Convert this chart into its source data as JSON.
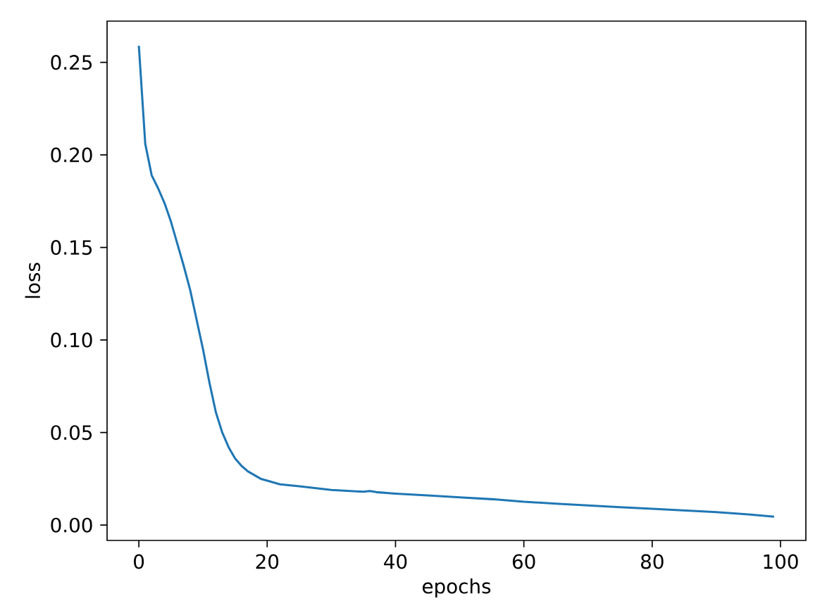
{
  "chart_data": {
    "type": "line",
    "xlabel": "epochs",
    "ylabel": "loss",
    "color": "#1f77b4",
    "x": [
      0,
      1,
      2,
      3,
      4,
      5,
      6,
      7,
      8,
      9,
      10,
      11,
      12,
      13,
      14,
      15,
      16,
      17,
      18,
      19,
      20,
      22,
      25,
      30,
      35,
      36,
      37,
      40,
      45,
      50,
      55,
      60,
      65,
      70,
      75,
      80,
      85,
      90,
      95,
      99
    ],
    "values": [
      0.259,
      0.206,
      0.189,
      0.182,
      0.174,
      0.164,
      0.152,
      0.14,
      0.127,
      0.111,
      0.095,
      0.077,
      0.061,
      0.05,
      0.042,
      0.036,
      0.032,
      0.029,
      0.027,
      0.025,
      0.024,
      0.022,
      0.021,
      0.019,
      0.018,
      0.0184,
      0.0178,
      0.017,
      0.016,
      0.015,
      0.014,
      0.0126,
      0.0116,
      0.0106,
      0.0097,
      0.0088,
      0.0079,
      0.007,
      0.0058,
      0.0045
    ],
    "xlim": [
      -4.95,
      103.95
    ],
    "ylim": [
      -0.0083,
      0.2723
    ],
    "xticks": [
      0,
      20,
      40,
      60,
      80,
      100
    ],
    "yticks": [
      {
        "value": 0,
        "label": "0.00"
      },
      {
        "value": 0.05,
        "label": "0.05"
      },
      {
        "value": 0.1,
        "label": "0.10"
      },
      {
        "value": 0.15,
        "label": "0.15"
      },
      {
        "value": 0.2,
        "label": "0.20"
      },
      {
        "value": 0.25,
        "label": "0.25"
      }
    ]
  }
}
